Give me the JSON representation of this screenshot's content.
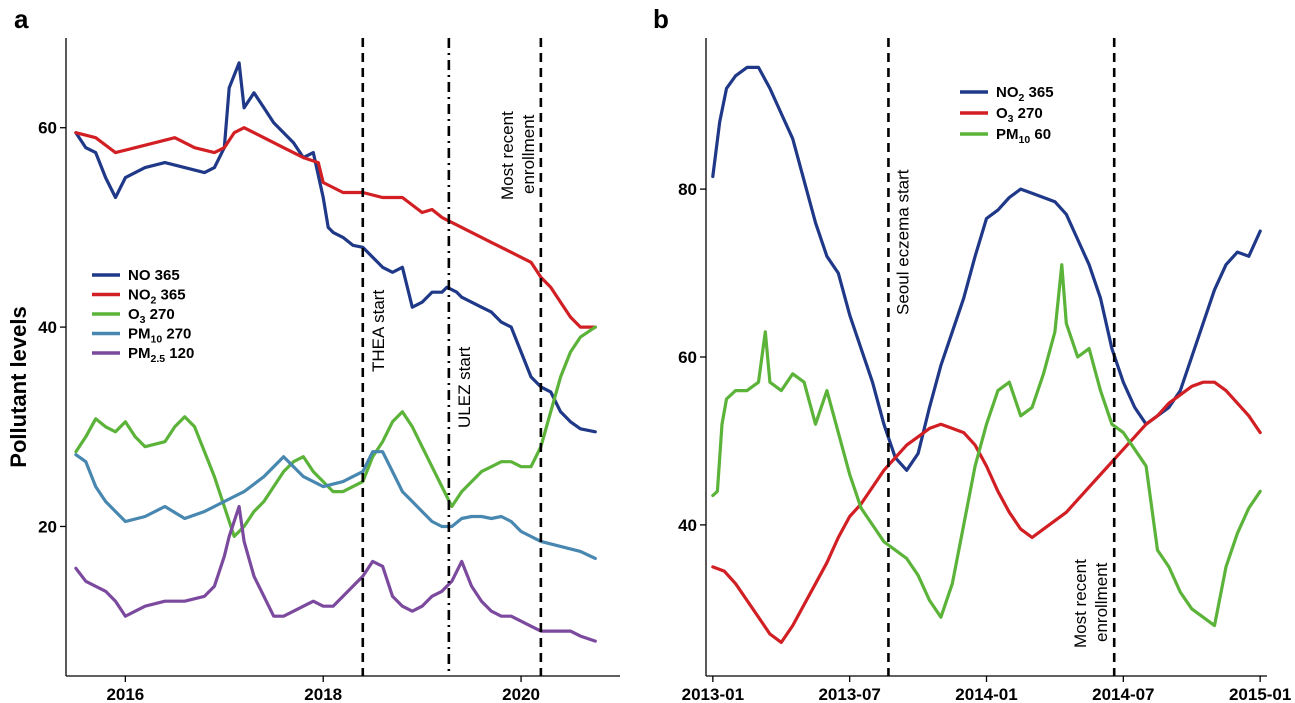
{
  "chart_data": [
    {
      "type": "line",
      "panel_label": "a",
      "ylabel": "Pollutant levels",
      "xlabel": "",
      "x_ticks": [
        "2016",
        "2018",
        "2020"
      ],
      "y_ticks": [
        20,
        40,
        60
      ],
      "xlim": [
        2015.4,
        2021.0
      ],
      "ylim": [
        5,
        69
      ],
      "grid": false,
      "legend_position": "left-middle",
      "series": [
        {
          "name": "NO 365",
          "legend_main": "NO",
          "legend_sub": "",
          "legend_tail": " 365",
          "color": "#1f3888",
          "x": [
            2015.5,
            2015.6,
            2015.7,
            2015.8,
            2015.9,
            2016.0,
            2016.1,
            2016.2,
            2016.4,
            2016.6,
            2016.8,
            2016.9,
            2017.0,
            2017.05,
            2017.15,
            2017.2,
            2017.3,
            2017.4,
            2017.5,
            2017.6,
            2017.7,
            2017.8,
            2017.9,
            2018.0,
            2018.05,
            2018.1,
            2018.2,
            2018.3,
            2018.4,
            2018.5,
            2018.6,
            2018.7,
            2018.8,
            2018.9,
            2019.0,
            2019.1,
            2019.2,
            2019.25,
            2019.35,
            2019.4,
            2019.5,
            2019.6,
            2019.7,
            2019.8,
            2019.9,
            2020.0,
            2020.1,
            2020.2,
            2020.3,
            2020.4,
            2020.5,
            2020.6,
            2020.75
          ],
          "y": [
            59.5,
            58,
            57.5,
            55,
            53,
            55,
            55.5,
            56,
            56.5,
            56,
            55.5,
            56,
            58,
            64,
            66.5,
            62,
            63.5,
            62,
            60.5,
            59.5,
            58.5,
            57,
            57.5,
            53,
            50,
            49.5,
            49,
            48.2,
            48,
            47,
            46,
            45.5,
            46,
            42,
            42.5,
            43.5,
            43.5,
            44,
            43.5,
            43,
            42.5,
            42,
            41.5,
            40.5,
            40,
            37.5,
            35,
            34,
            33.5,
            31.5,
            30.5,
            29.8,
            29.5
          ]
        },
        {
          "name": "NO2 365",
          "legend_main": "NO",
          "legend_sub": "2",
          "legend_tail": " 365",
          "color": "#d11f24",
          "x": [
            2015.5,
            2015.7,
            2015.9,
            2016.1,
            2016.3,
            2016.5,
            2016.7,
            2016.9,
            2017.0,
            2017.1,
            2017.2,
            2017.4,
            2017.6,
            2017.8,
            2017.95,
            2018.0,
            2018.2,
            2018.4,
            2018.6,
            2018.8,
            2019.0,
            2019.1,
            2019.2,
            2019.3,
            2019.5,
            2019.7,
            2019.9,
            2020.0,
            2020.1,
            2020.2,
            2020.3,
            2020.4,
            2020.5,
            2020.6,
            2020.75
          ],
          "y": [
            59.5,
            59,
            57.5,
            58,
            58.5,
            59,
            58,
            57.5,
            58,
            59.5,
            60,
            59,
            58,
            57,
            56.5,
            54.5,
            53.5,
            53.5,
            53,
            53,
            51.5,
            51.8,
            51,
            50.5,
            49.5,
            48.5,
            47.5,
            47,
            46.5,
            45,
            44,
            42.5,
            41,
            40,
            40
          ]
        },
        {
          "name": "O3 270",
          "legend_main": "O",
          "legend_sub": "3",
          "legend_tail": " 270",
          "color": "#5bb339",
          "x": [
            2015.5,
            2015.6,
            2015.7,
            2015.8,
            2015.9,
            2016.0,
            2016.1,
            2016.2,
            2016.4,
            2016.5,
            2016.6,
            2016.7,
            2016.8,
            2016.9,
            2017.0,
            2017.1,
            2017.2,
            2017.3,
            2017.4,
            2017.5,
            2017.6,
            2017.7,
            2017.8,
            2017.9,
            2018.0,
            2018.1,
            2018.2,
            2018.3,
            2018.4,
            2018.5,
            2018.6,
            2018.7,
            2018.8,
            2018.9,
            2019.0,
            2019.1,
            2019.2,
            2019.3,
            2019.4,
            2019.5,
            2019.6,
            2019.7,
            2019.8,
            2019.9,
            2020.0,
            2020.1,
            2020.2,
            2020.3,
            2020.4,
            2020.5,
            2020.6,
            2020.75
          ],
          "y": [
            27.5,
            29,
            30.8,
            30,
            29.5,
            30.5,
            29,
            28,
            28.5,
            30,
            31,
            30,
            27.5,
            25,
            22,
            19,
            20,
            21.5,
            22.5,
            24,
            25.5,
            26.5,
            27,
            25.5,
            24.5,
            23.5,
            23.5,
            24,
            24.5,
            27,
            28.5,
            30.5,
            31.5,
            30,
            28,
            26,
            24,
            22,
            23.5,
            24.5,
            25.5,
            26,
            26.5,
            26.5,
            26,
            26,
            28,
            31.5,
            35,
            37.5,
            39,
            40
          ]
        },
        {
          "name": "PM10 270",
          "legend_main": "PM",
          "legend_sub": "10",
          "legend_tail": " 270",
          "color": "#4787b0",
          "x": [
            2015.5,
            2015.6,
            2015.7,
            2015.8,
            2016.0,
            2016.2,
            2016.4,
            2016.6,
            2016.8,
            2017.0,
            2017.2,
            2017.4,
            2017.6,
            2017.8,
            2018.0,
            2018.2,
            2018.4,
            2018.5,
            2018.6,
            2018.7,
            2018.8,
            2018.9,
            2019.0,
            2019.1,
            2019.2,
            2019.3,
            2019.4,
            2019.5,
            2019.6,
            2019.7,
            2019.8,
            2019.9,
            2020.0,
            2020.2,
            2020.4,
            2020.6,
            2020.75
          ],
          "y": [
            27.2,
            26.5,
            24,
            22.5,
            20.5,
            21,
            22,
            20.8,
            21.5,
            22.5,
            23.5,
            25,
            27,
            25,
            24,
            24.5,
            25.5,
            27.5,
            27.5,
            25.5,
            23.5,
            22.5,
            21.5,
            20.5,
            20,
            20,
            20.8,
            21,
            21,
            20.8,
            21,
            20.5,
            19.5,
            18.5,
            18,
            17.5,
            16.8
          ]
        },
        {
          "name": "PM2.5 120",
          "legend_main": "PM",
          "legend_sub": "2.5",
          "legend_tail": " 120",
          "color": "#7b4a9e",
          "x": [
            2015.5,
            2015.6,
            2015.7,
            2015.8,
            2015.9,
            2016.0,
            2016.1,
            2016.2,
            2016.4,
            2016.6,
            2016.8,
            2016.9,
            2017.0,
            2017.05,
            2017.15,
            2017.2,
            2017.3,
            2017.4,
            2017.5,
            2017.6,
            2017.7,
            2017.8,
            2017.9,
            2018.0,
            2018.1,
            2018.2,
            2018.3,
            2018.4,
            2018.5,
            2018.6,
            2018.7,
            2018.8,
            2018.9,
            2019.0,
            2019.1,
            2019.2,
            2019.3,
            2019.35,
            2019.4,
            2019.5,
            2019.6,
            2019.7,
            2019.8,
            2019.9,
            2020.0,
            2020.1,
            2020.2,
            2020.3,
            2020.4,
            2020.5,
            2020.6,
            2020.75
          ],
          "y": [
            15.8,
            14.5,
            14,
            13.5,
            12.5,
            11,
            11.5,
            12,
            12.5,
            12.5,
            13,
            14,
            17,
            19,
            22,
            18.5,
            15,
            13,
            11,
            11,
            11.5,
            12,
            12.5,
            12,
            12,
            13,
            14,
            15,
            16.5,
            16,
            13,
            12,
            11.5,
            12,
            13,
            13.5,
            14.5,
            15.5,
            16.5,
            14,
            12.5,
            11.5,
            11,
            11,
            10.5,
            10,
            9.5,
            9.5,
            9.5,
            9.5,
            9,
            8.5
          ]
        }
      ],
      "vlines": [
        {
          "x": 2018.4,
          "style": "dashed",
          "label": "THEA start"
        },
        {
          "x": 2019.27,
          "style": "dashdot",
          "label": "ULEZ start"
        },
        {
          "x": 2020.2,
          "style": "dashed",
          "label_lines": [
            "Most recent",
            "enrollment"
          ]
        }
      ]
    },
    {
      "type": "line",
      "panel_label": "b",
      "ylabel": "",
      "xlabel": "",
      "x_ticks": [
        "2013-01",
        "2013-07",
        "2014-01",
        "2014-07",
        "2015-01"
      ],
      "y_ticks": [
        40,
        60,
        80
      ],
      "xlim": [
        -0.3,
        24.3
      ],
      "x_axis_note": "x values are months since 2013-01 (2013-01 = 0, 2015-01 = 24)",
      "ylim": [
        22,
        98
      ],
      "grid": false,
      "legend_position": "top-right",
      "series": [
        {
          "name": "NO2 365",
          "legend_main": "NO",
          "legend_sub": "2",
          "legend_tail": " 365",
          "color": "#1f3888",
          "x": [
            0,
            0.3,
            0.6,
            1,
            1.5,
            2,
            2.5,
            3,
            3.5,
            4,
            4.5,
            5,
            5.5,
            6,
            6.5,
            7,
            7.5,
            8,
            8.5,
            9,
            9.5,
            10,
            10.5,
            11,
            11.5,
            12,
            12.5,
            13,
            13.5,
            14,
            14.5,
            15,
            15.5,
            16,
            16.5,
            17,
            17.5,
            18,
            18.5,
            19,
            19.5,
            20,
            20.5,
            21,
            21.5,
            22,
            22.5,
            23,
            23.5,
            24
          ],
          "y": [
            81.5,
            88,
            92,
            93.5,
            94.5,
            94.5,
            92,
            89,
            86,
            81,
            76,
            72,
            70,
            65,
            61,
            57,
            52,
            48,
            46.5,
            48.5,
            54,
            59,
            63,
            67,
            72,
            76.5,
            77.5,
            79,
            80,
            79.5,
            79,
            78.5,
            77,
            74,
            71,
            67,
            61,
            57,
            54,
            52,
            53,
            54,
            56,
            60,
            64,
            68,
            71,
            72.5,
            72,
            75
          ]
        },
        {
          "name": "O3 270",
          "legend_main": "O",
          "legend_sub": "3",
          "legend_tail": " 270",
          "color": "#d11f24",
          "x": [
            0,
            0.5,
            1,
            1.5,
            2,
            2.5,
            3,
            3.5,
            4,
            4.5,
            5,
            5.5,
            6,
            6.5,
            7,
            7.5,
            8,
            8.5,
            9,
            9.5,
            10,
            10.5,
            11,
            11.5,
            12,
            12.5,
            13,
            13.5,
            14,
            14.5,
            15,
            15.5,
            16,
            16.5,
            17,
            17.5,
            18,
            18.5,
            19,
            19.5,
            20,
            20.5,
            21,
            21.5,
            22,
            22.5,
            23,
            23.5,
            24
          ],
          "y": [
            35,
            34.5,
            33,
            31,
            29,
            27,
            26,
            28,
            30.5,
            33,
            35.5,
            38.5,
            41,
            42.5,
            44.5,
            46.5,
            48,
            49.5,
            50.5,
            51.5,
            52,
            51.5,
            51,
            49.5,
            47,
            44,
            41.5,
            39.5,
            38.5,
            39.5,
            40.5,
            41.5,
            43,
            44.5,
            46,
            47.5,
            49,
            50.5,
            52,
            53,
            54.5,
            55.5,
            56.5,
            57,
            57,
            56,
            54.5,
            53,
            51
          ]
        },
        {
          "name": "PM10 60",
          "legend_main": "PM",
          "legend_sub": "10",
          "legend_tail": " 60",
          "color": "#5bb339",
          "x": [
            0,
            0.2,
            0.4,
            0.6,
            1,
            1.5,
            2,
            2.3,
            2.5,
            3,
            3.5,
            4,
            4.5,
            5,
            5.5,
            6,
            6.5,
            7,
            7.5,
            8,
            8.5,
            9,
            9.5,
            10,
            10.5,
            11,
            11.5,
            12,
            12.5,
            13,
            13.5,
            14,
            14.5,
            15,
            15.3,
            15.5,
            16,
            16.5,
            17,
            17.5,
            18,
            18.5,
            19,
            19.5,
            20,
            20.5,
            21,
            21.5,
            22,
            22.5,
            23,
            23.5,
            24
          ],
          "y": [
            43.5,
            44,
            52,
            55,
            56,
            56,
            57,
            63,
            57,
            56,
            58,
            57,
            52,
            56,
            51,
            46,
            42,
            40,
            38,
            37,
            36,
            34,
            31,
            29,
            33,
            40,
            47,
            52,
            56,
            57,
            53,
            54,
            58,
            63,
            71,
            64,
            60,
            61,
            56,
            52,
            51,
            49,
            47,
            37,
            35,
            32,
            30,
            29,
            28,
            35,
            39,
            42,
            44
          ]
        }
      ],
      "vlines": [
        {
          "x": 7.7,
          "style": "dashed",
          "label": "Seoul eczema start"
        },
        {
          "x": 17.6,
          "style": "dashed",
          "label_lines": [
            "Most recent",
            "enrollment"
          ]
        }
      ]
    }
  ]
}
